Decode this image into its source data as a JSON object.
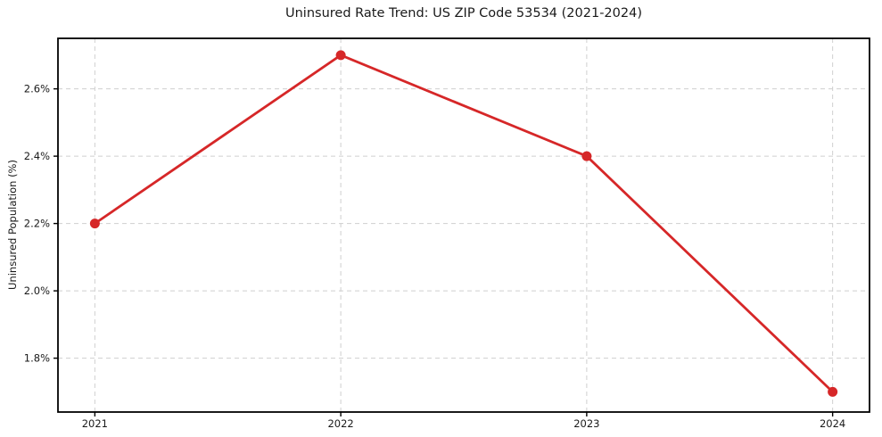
{
  "chart_data": {
    "type": "line",
    "title": "Uninsured Rate Trend: US ZIP Code 53534 (2021-2024)",
    "xlabel": "",
    "ylabel": "Uninsured Population (%)",
    "x": [
      2021,
      2022,
      2023,
      2024
    ],
    "values": [
      2.2,
      2.7,
      2.4,
      1.7
    ],
    "x_tick_labels": [
      "2021",
      "2022",
      "2023",
      "2024"
    ],
    "y_ticks": [
      1.8,
      2.0,
      2.2,
      2.4,
      2.6
    ],
    "y_tick_labels": [
      "1.8%",
      "2.0%",
      "2.2%",
      "2.4%",
      "2.6%"
    ],
    "xlim": [
      2020.85,
      2024.15
    ],
    "ylim": [
      1.64,
      2.75
    ],
    "grid": true,
    "grid_style": "dashed",
    "legend": "none",
    "marker": "circle",
    "colors": {
      "line": "#d62728",
      "marker": "#d62728",
      "grid": "#cfcfcf",
      "spine": "#000000",
      "text": "#1a1a1a",
      "background": "#ffffff"
    }
  }
}
